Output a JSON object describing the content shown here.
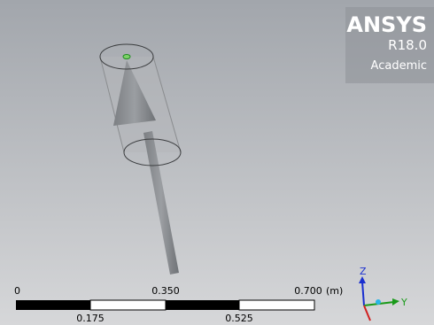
{
  "logo": {
    "brand": "ANSYS",
    "version": "R18.0",
    "edition": "Academic"
  },
  "scale_bar": {
    "top_labels": [
      "0",
      "0.350",
      "0.700"
    ],
    "unit": "(m)",
    "bottom_labels": [
      "0.175",
      "0.525"
    ]
  },
  "triad": {
    "axes": [
      "Z",
      "Y"
    ]
  }
}
